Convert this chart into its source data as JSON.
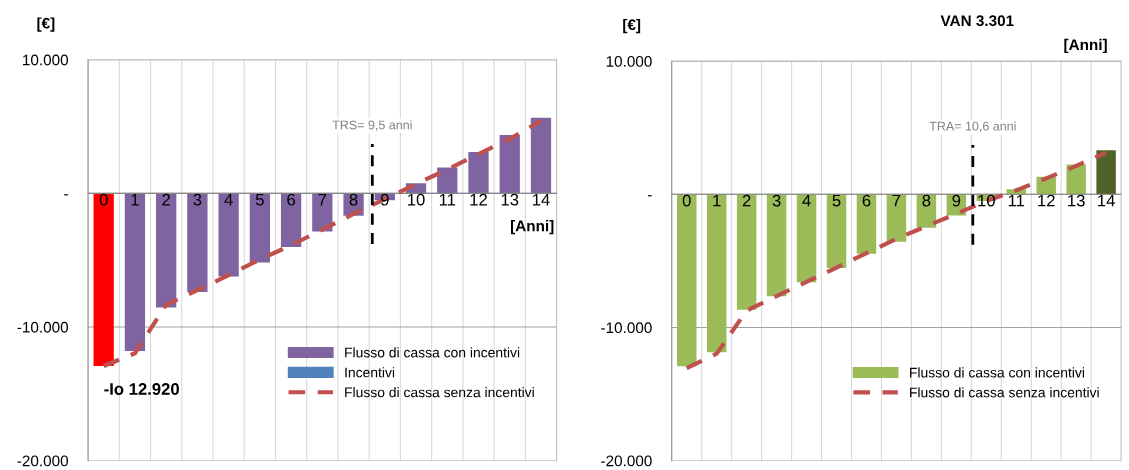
{
  "chart_data": [
    {
      "type": "bar",
      "ylabel": "[€]",
      "xlabel": "[Anni]",
      "categories": [
        "0",
        "1",
        "2",
        "3",
        "4",
        "5",
        "6",
        "7",
        "8",
        "9",
        "10",
        "11",
        "12",
        "13",
        "14"
      ],
      "series": [
        {
          "name": "Flusso di cassa con incentivi",
          "color": "#8064a2",
          "colors": [
            "#ff0000",
            "#8064a2",
            "#8064a2",
            "#8064a2",
            "#8064a2",
            "#8064a2",
            "#8064a2",
            "#8064a2",
            "#8064a2",
            "#8064a2",
            "#8064a2",
            "#8064a2",
            "#8064a2",
            "#8064a2",
            "#8064a2"
          ],
          "values": [
            -12920,
            -11800,
            -8550,
            -7390,
            -6230,
            -5170,
            -4020,
            -2860,
            -1670,
            -510,
            750,
            1940,
            3100,
            4370,
            5660
          ]
        },
        {
          "name": "Incentivi",
          "color": "#4f81bd",
          "values": [
            null,
            null,
            null,
            null,
            null,
            null,
            null,
            null,
            null,
            null,
            null,
            null,
            null,
            null,
            null
          ]
        },
        {
          "name": "Flusso di cassa senza incentivi",
          "type": "line",
          "color": "#c0504d",
          "line_style": "dashed",
          "values": [
            -12920,
            -11970,
            -8330,
            -7250,
            -6120,
            -4960,
            -3880,
            -2720,
            -1540,
            -430,
            700,
            1780,
            2940,
            4070,
            5420
          ]
        }
      ],
      "ylim": [
        -20000,
        10000
      ],
      "yticks": [
        {
          "value": -20000,
          "label": "-20.000"
        },
        {
          "value": -10000,
          "label": "-10.000"
        },
        {
          "value": 0,
          "label": "-"
        },
        {
          "value": 10000,
          "label": "10.000"
        }
      ],
      "grid": true,
      "legend": "bottom right",
      "annotations": [
        {
          "text": "-Io 12.920",
          "x": "0",
          "y": -12920
        },
        "TRS= 9,5 anni"
      ]
    },
    {
      "type": "bar",
      "title": "VAN 3.301",
      "ylabel": "[€]",
      "xlabel": "[Anni]",
      "categories": [
        "0",
        "1",
        "2",
        "3",
        "4",
        "5",
        "6",
        "7",
        "8",
        "9",
        "10",
        "11",
        "12",
        "13",
        "14"
      ],
      "series": [
        {
          "name": "Flusso di cassa con incentivi",
          "color": "#9bbb59",
          "colors": [
            "#9bbb59",
            "#9bbb59",
            "#9bbb59",
            "#9bbb59",
            "#9bbb59",
            "#9bbb59",
            "#9bbb59",
            "#9bbb59",
            "#9bbb59",
            "#9bbb59",
            "#9bbb59",
            "#9bbb59",
            "#9bbb59",
            "#9bbb59",
            "#4f6228"
          ],
          "values": [
            -12910,
            -11860,
            -8680,
            -7650,
            -6600,
            -5530,
            -4470,
            -3560,
            -2510,
            -1590,
            -510,
            380,
            1320,
            2240,
            3300
          ]
        },
        {
          "name": "Flusso di cassa senza incentivi",
          "type": "line",
          "color": "#c0504d",
          "line_style": "dashed",
          "values": [
            -13050,
            -11970,
            -8730,
            -7650,
            -6580,
            -5500,
            -4420,
            -3340,
            -2400,
            -1460,
            -510,
            300,
            1190,
            2130,
            3130
          ]
        }
      ],
      "ylim": [
        -20000,
        10000
      ],
      "yticks": [
        {
          "value": -20000,
          "label": "-20.000"
        },
        {
          "value": -10000,
          "label": "-10.000"
        },
        {
          "value": 0,
          "label": "-"
        },
        {
          "value": 10000,
          "label": "10.000"
        }
      ],
      "grid": true,
      "legend": "bottom right",
      "annotations": [
        "TRA= 10,6 anni"
      ]
    }
  ]
}
